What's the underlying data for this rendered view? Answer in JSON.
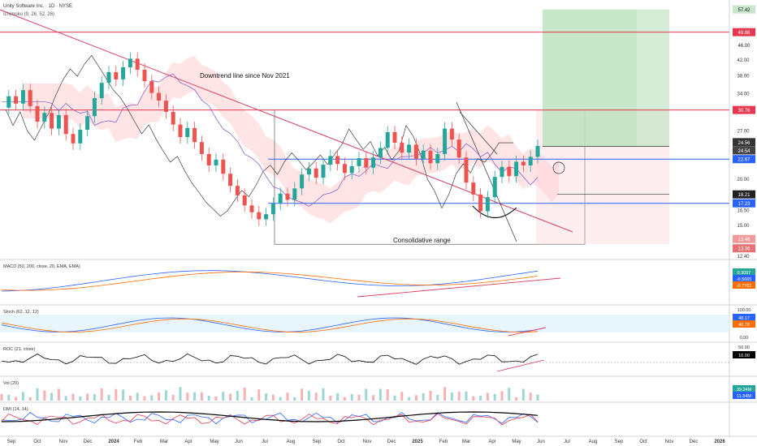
{
  "header": {
    "symbol_line": "Unity Software Inc. · 1D · NYSE",
    "ichimoku_label": "Ichimoku (9, 26, 52, 26)"
  },
  "annotations": {
    "downtrend": "Downtrend line since Nov 2021",
    "range": "Consolidative range"
  },
  "colors": {
    "candle_up": "#26a69a",
    "candle_down": "#ef5350",
    "resistance": "#e53950",
    "support": "#2962ff",
    "trendline": "#d94060",
    "target_zone": "#c8e6c9",
    "cloud_bull": "#a5d6a7",
    "cloud_bear": "#ffcdd2",
    "macd_line": "#2962ff",
    "signal_line": "#ff6d00",
    "stoch_k": "#2962ff",
    "stoch_d": "#ff6d00",
    "roc_line": "#000000",
    "dmi_plus": "#2962ff",
    "dmi_minus": "#e53950",
    "adx": "#000000"
  },
  "chart_data": {
    "type": "line",
    "title": "Unity Software Inc. · 1D · NYSE",
    "y_scale": "log",
    "ylim": [
      12.4,
      58.5
    ],
    "x_ticks": [
      "Sep",
      "Oct",
      "Nov",
      "Dec",
      "2024",
      "Feb",
      "Mar",
      "Apr",
      "May",
      "Jun",
      "Jul",
      "Aug",
      "Sep",
      "Oct",
      "Nov",
      "Dec",
      "2025",
      "Feb",
      "Mar",
      "Apr",
      "May",
      "Jun",
      "Jul",
      "Aug",
      "Sep",
      "Oct",
      "Nov",
      "Dec",
      "2026"
    ],
    "x_ticks_bold": [
      "2024",
      "2025",
      "2026"
    ],
    "y_ticks": [
      "42.00",
      "38.00",
      "34.00",
      "27.00",
      "20.00",
      "16.50",
      "15.00",
      "12.40"
    ],
    "series": [
      {
        "values": [
          31.2,
          33.5,
          32.0,
          34.8,
          31.5,
          28.6,
          30.2,
          27.4,
          29.8,
          26.5,
          25.0,
          27.2,
          29.6,
          33.1,
          36.4,
          38.9,
          37.2,
          40.1,
          42.3,
          39.5,
          36.8,
          34.2,
          32.6,
          30.4,
          28.1,
          26.0,
          27.5,
          25.2,
          23.4,
          21.8,
          22.6,
          20.7,
          19.2,
          18.1,
          17.0,
          16.3,
          15.6,
          16.1,
          17.2,
          18.3,
          17.6,
          18.9,
          20.6,
          21.4,
          20.2,
          21.9,
          23.1,
          22.0,
          20.8,
          21.7,
          22.8,
          21.5,
          22.9,
          24.3,
          26.8,
          25.1,
          23.6,
          24.8,
          22.7,
          23.9,
          22.1,
          23.4,
          27.4,
          25.6,
          22.9,
          19.6,
          18.2,
          16.4,
          17.9,
          20.3,
          21.6,
          20.4,
          22.3,
          21.8,
          23.0,
          24.6
        ]
      }
    ],
    "price_labels": [
      "57.42",
      "49.88",
      "46.00",
      "30.76",
      "24.56",
      "24.54",
      "22.67",
      "18.21",
      "17.23",
      "13.46",
      "13.36"
    ],
    "levels": {
      "resistance_high": 49.88,
      "resistance": 30.76,
      "support_upper": 22.67,
      "support_lower": 17.23,
      "target_top": 57.42,
      "stop": 18.21
    },
    "indicators": [
      {
        "name": "MACD (50, 200, close, 20, EMA, EMA)",
        "values": [
          "0.3097",
          "-0.5665",
          "-0.7762"
        ]
      },
      {
        "name": "Stoch (62, 12, 12)",
        "values": [
          "48.17",
          "40.78"
        ],
        "scale": [
          "100.00",
          "0.00"
        ]
      },
      {
        "name": "ROC (21, close)",
        "values": [
          "10.00"
        ],
        "scale": [
          "50.00"
        ]
      },
      {
        "name": "Vol (20)",
        "values": [
          "39.24M",
          "11.84M"
        ]
      },
      {
        "name": "DMI (14, 14)",
        "values": []
      }
    ]
  }
}
